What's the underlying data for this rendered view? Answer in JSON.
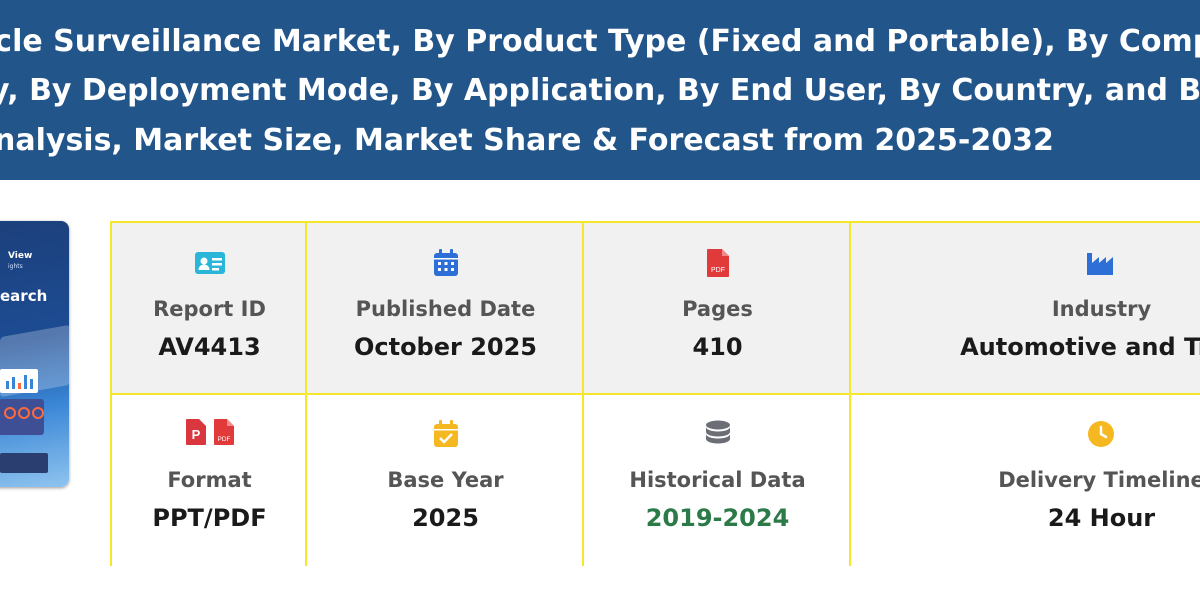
{
  "banner": {
    "line1": "icle Surveillance Market, By Product Type (Fixed and Portable), By Component, B",
    "line2": "y, By Deployment Mode, By Application, By End User, By Country, and By Region",
    "line3": "nalysis, Market Size, Market Share & Forecast from 2025-2032"
  },
  "cover": {
    "logo_line1": "View",
    "logo_line2": "ights",
    "title": "earch"
  },
  "info": {
    "report_id": {
      "label": "Report ID",
      "value": "AV4413",
      "icon": "id-card-icon"
    },
    "published_date": {
      "label": "Published Date",
      "value": "October 2025",
      "icon": "calendar-icon"
    },
    "pages": {
      "label": "Pages",
      "value": "410",
      "icon": "pdf-file-icon"
    },
    "industry": {
      "label": "Industry",
      "value": "Automotive and Tran",
      "icon": "factory-icon"
    },
    "format": {
      "label": "Format",
      "value": "PPT/PDF",
      "icons": [
        "ppt-file-icon",
        "pdf-file-icon"
      ]
    },
    "base_year": {
      "label": "Base Year",
      "value": "2025",
      "icon": "calendar-check-icon"
    },
    "historical_data": {
      "label": "Historical Data",
      "value": "2019-2024",
      "icon": "database-icon"
    },
    "delivery_timeline": {
      "label": "Delivery Timeline",
      "value": "24 Hour",
      "icon": "clock-icon"
    }
  },
  "colors": {
    "banner_bg": "#22558a",
    "grid_border": "#f5e72a",
    "historical_value": "#2b7a47"
  }
}
